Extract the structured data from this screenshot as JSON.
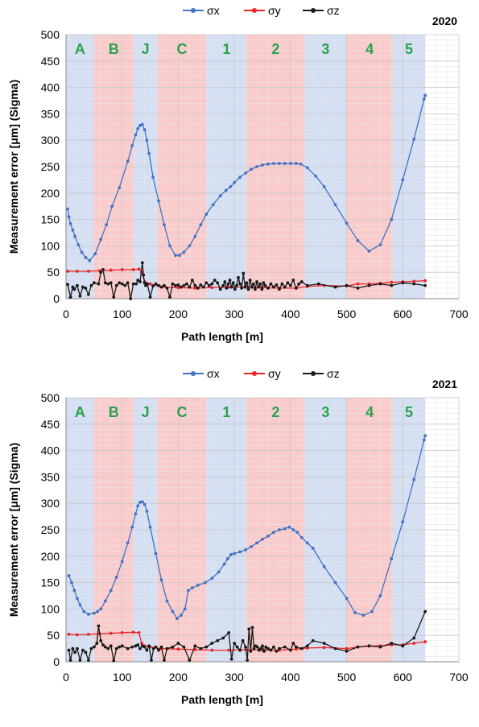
{
  "chart_data": [
    {
      "type": "line",
      "year_label": "2020",
      "xlabel": "Path length [m]",
      "ylabel": "Measurement error [μm] (Sigma)",
      "xlim": [
        0,
        700
      ],
      "ylim": [
        0,
        500
      ],
      "x_ticks": [
        "0",
        "100",
        "200",
        "300",
        "400",
        "500",
        "600",
        "700"
      ],
      "y_ticks": [
        "0",
        "50",
        "100",
        "150",
        "200",
        "250",
        "300",
        "350",
        "400",
        "450",
        "500"
      ],
      "grid": true,
      "legend_position": "top",
      "regions": [
        {
          "label": "A",
          "x0": 0,
          "x1": 50,
          "color": "blue"
        },
        {
          "label": "B",
          "x0": 50,
          "x1": 120,
          "color": "red"
        },
        {
          "label": "J",
          "x0": 120,
          "x1": 163,
          "color": "blue"
        },
        {
          "label": "C",
          "x0": 163,
          "x1": 250,
          "color": "red"
        },
        {
          "label": "1",
          "x0": 250,
          "x1": 322,
          "color": "blue"
        },
        {
          "label": "2",
          "x0": 322,
          "x1": 425,
          "color": "red"
        },
        {
          "label": "3",
          "x0": 425,
          "x1": 500,
          "color": "blue"
        },
        {
          "label": "4",
          "x0": 500,
          "x1": 582,
          "color": "red"
        },
        {
          "label": "5",
          "x0": 582,
          "x1": 640,
          "color": "blue"
        }
      ],
      "series": [
        {
          "name": "σx",
          "color": "#4472c4",
          "x": [
            3,
            5,
            8,
            12,
            16,
            22,
            28,
            35,
            42,
            52,
            62,
            72,
            82,
            95,
            110,
            118,
            124,
            128,
            132,
            136,
            140,
            144,
            148,
            155,
            165,
            175,
            185,
            195,
            202,
            210,
            220,
            230,
            240,
            250,
            262,
            275,
            285,
            293,
            300,
            310,
            320,
            330,
            340,
            350,
            360,
            370,
            380,
            390,
            400,
            410,
            418,
            430,
            445,
            460,
            480,
            500,
            520,
            540,
            560,
            580,
            600,
            620,
            638,
            640
          ],
          "y": [
            170,
            155,
            142,
            130,
            118,
            102,
            88,
            78,
            72,
            85,
            112,
            140,
            175,
            210,
            260,
            290,
            310,
            322,
            328,
            330,
            320,
            300,
            275,
            230,
            185,
            140,
            100,
            82,
            82,
            88,
            100,
            118,
            140,
            160,
            178,
            195,
            205,
            212,
            220,
            230,
            238,
            245,
            250,
            253,
            255,
            256,
            256,
            256,
            256,
            256,
            255,
            248,
            232,
            212,
            178,
            143,
            110,
            90,
            102,
            150,
            225,
            302,
            378,
            385
          ]
        },
        {
          "name": "σy",
          "color": "#e8262a",
          "x": [
            3,
            20,
            40,
            60,
            80,
            100,
            120,
            130,
            135,
            140,
            150,
            170,
            200,
            230,
            260,
            290,
            320,
            350,
            380,
            410,
            430,
            460,
            500,
            520,
            540,
            560,
            580,
            600,
            620,
            640
          ],
          "y": [
            52,
            52,
            52,
            53,
            54,
            55,
            55,
            56,
            50,
            32,
            28,
            22,
            21,
            20,
            21,
            22,
            22,
            21,
            20,
            20,
            23,
            25,
            24,
            28,
            28,
            29,
            31,
            32,
            33,
            34
          ]
        },
        {
          "name": "σz",
          "color": "#1a1a1a",
          "x": [
            3,
            8,
            12,
            15,
            20,
            25,
            30,
            35,
            40,
            45,
            50,
            58,
            62,
            66,
            70,
            75,
            80,
            85,
            90,
            95,
            100,
            105,
            110,
            115,
            120,
            125,
            128,
            132,
            136,
            138,
            140,
            142,
            145,
            150,
            155,
            160,
            165,
            170,
            175,
            180,
            185,
            190,
            195,
            200,
            205,
            210,
            215,
            220,
            225,
            230,
            235,
            240,
            245,
            250,
            255,
            260,
            265,
            270,
            275,
            280,
            283,
            286,
            289,
            292,
            295,
            298,
            301,
            304,
            307,
            310,
            313,
            316,
            319,
            322,
            325,
            328,
            331,
            334,
            337,
            340,
            343,
            346,
            349,
            352,
            355,
            360,
            365,
            370,
            375,
            380,
            385,
            390,
            395,
            400,
            405,
            410,
            415,
            420,
            430,
            450,
            480,
            500,
            520,
            540,
            560,
            580,
            600,
            620,
            640
          ],
          "y": [
            27,
            3,
            22,
            18,
            25,
            5,
            22,
            20,
            8,
            25,
            30,
            28,
            50,
            55,
            30,
            28,
            30,
            3,
            25,
            30,
            28,
            25,
            30,
            0,
            28,
            28,
            35,
            32,
            68,
            45,
            30,
            25,
            28,
            3,
            24,
            28,
            25,
            22,
            25,
            20,
            3,
            28,
            25,
            26,
            22,
            25,
            28,
            22,
            35,
            25,
            20,
            26,
            22,
            30,
            25,
            28,
            35,
            30,
            18,
            25,
            32,
            20,
            28,
            35,
            22,
            30,
            18,
            25,
            40,
            28,
            20,
            48,
            22,
            30,
            18,
            35,
            22,
            28,
            18,
            32,
            22,
            28,
            18,
            30,
            25,
            20,
            28,
            22,
            26,
            18,
            28,
            22,
            30,
            25,
            35,
            20,
            28,
            32,
            25,
            28,
            22,
            25,
            20,
            25,
            28,
            25,
            30,
            28,
            25
          ]
        }
      ]
    },
    {
      "type": "line",
      "year_label": "2021",
      "xlabel": "Path length [m]",
      "ylabel": "Measurement error [μm] (Sigma)",
      "xlim": [
        0,
        700
      ],
      "ylim": [
        0,
        500
      ],
      "x_ticks": [
        "0",
        "100",
        "200",
        "300",
        "400",
        "500",
        "600",
        "700"
      ],
      "y_ticks": [
        "0",
        "50",
        "100",
        "150",
        "200",
        "250",
        "300",
        "350",
        "400",
        "450",
        "500"
      ],
      "grid": true,
      "legend_position": "top",
      "regions": [
        {
          "label": "A",
          "x0": 0,
          "x1": 50,
          "color": "blue"
        },
        {
          "label": "B",
          "x0": 50,
          "x1": 120,
          "color": "red"
        },
        {
          "label": "J",
          "x0": 120,
          "x1": 163,
          "color": "blue"
        },
        {
          "label": "C",
          "x0": 163,
          "x1": 250,
          "color": "red"
        },
        {
          "label": "1",
          "x0": 250,
          "x1": 322,
          "color": "blue"
        },
        {
          "label": "2",
          "x0": 322,
          "x1": 425,
          "color": "red"
        },
        {
          "label": "3",
          "x0": 425,
          "x1": 500,
          "color": "blue"
        },
        {
          "label": "4",
          "x0": 500,
          "x1": 582,
          "color": "red"
        },
        {
          "label": "5",
          "x0": 582,
          "x1": 640,
          "color": "blue"
        }
      ],
      "series": [
        {
          "name": "σx",
          "color": "#4472c4",
          "x": [
            5,
            10,
            15,
            20,
            25,
            32,
            40,
            50,
            56,
            62,
            70,
            80,
            90,
            100,
            110,
            118,
            124,
            128,
            132,
            136,
            140,
            144,
            150,
            160,
            170,
            180,
            190,
            198,
            205,
            212,
            218,
            225,
            235,
            248,
            260,
            272,
            282,
            288,
            294,
            300,
            310,
            320,
            330,
            340,
            350,
            360,
            370,
            380,
            390,
            398,
            405,
            412,
            420,
            430,
            440,
            460,
            480,
            500,
            515,
            530,
            545,
            560,
            580,
            600,
            620,
            638,
            640
          ],
          "y": [
            163,
            150,
            135,
            120,
            108,
            95,
            90,
            92,
            95,
            100,
            115,
            135,
            160,
            190,
            225,
            255,
            280,
            295,
            302,
            303,
            298,
            285,
            255,
            205,
            155,
            115,
            95,
            82,
            88,
            100,
            135,
            140,
            145,
            150,
            158,
            170,
            185,
            195,
            203,
            205,
            208,
            212,
            218,
            225,
            232,
            238,
            245,
            250,
            252,
            255,
            250,
            245,
            235,
            225,
            215,
            180,
            150,
            120,
            93,
            88,
            95,
            125,
            195,
            265,
            345,
            420,
            428
          ]
        },
        {
          "name": "σy",
          "color": "#e8262a",
          "x": [
            5,
            20,
            40,
            60,
            80,
            100,
            120,
            130,
            135,
            140,
            150,
            170,
            200,
            230,
            260,
            290,
            320,
            350,
            380,
            410,
            430,
            460,
            500,
            520,
            540,
            560,
            580,
            600,
            620,
            640
          ],
          "y": [
            52,
            51,
            52,
            53,
            54,
            55,
            56,
            55,
            35,
            30,
            28,
            25,
            24,
            23,
            22,
            22,
            23,
            22,
            22,
            24,
            26,
            27,
            25,
            28,
            30,
            30,
            32,
            32,
            35,
            38
          ]
        },
        {
          "name": "σz",
          "color": "#1a1a1a",
          "x": [
            5,
            8,
            12,
            16,
            20,
            25,
            30,
            35,
            40,
            45,
            50,
            55,
            58,
            62,
            66,
            70,
            75,
            80,
            85,
            90,
            95,
            100,
            110,
            118,
            124,
            128,
            132,
            136,
            140,
            144,
            148,
            152,
            156,
            160,
            165,
            170,
            175,
            180,
            190,
            200,
            210,
            220,
            230,
            240,
            250,
            260,
            270,
            280,
            290,
            295,
            300,
            305,
            310,
            315,
            320,
            323,
            326,
            329,
            332,
            335,
            338,
            341,
            344,
            347,
            350,
            353,
            356,
            360,
            365,
            370,
            375,
            380,
            390,
            400,
            405,
            410,
            420,
            430,
            440,
            460,
            480,
            500,
            520,
            540,
            560,
            580,
            600,
            620,
            640
          ],
          "y": [
            22,
            3,
            25,
            18,
            25,
            3,
            22,
            18,
            3,
            25,
            28,
            35,
            68,
            40,
            32,
            28,
            25,
            30,
            2,
            25,
            28,
            30,
            25,
            28,
            30,
            32,
            25,
            30,
            28,
            22,
            30,
            3,
            25,
            28,
            22,
            28,
            3,
            25,
            28,
            35,
            28,
            3,
            30,
            25,
            28,
            35,
            40,
            45,
            55,
            5,
            35,
            28,
            22,
            40,
            28,
            3,
            62,
            20,
            65,
            25,
            30,
            28,
            22,
            25,
            30,
            20,
            28,
            25,
            22,
            28,
            20,
            25,
            28,
            22,
            35,
            28,
            25,
            30,
            40,
            35,
            25,
            20,
            28,
            30,
            28,
            35,
            30,
            45,
            95
          ]
        }
      ]
    }
  ]
}
